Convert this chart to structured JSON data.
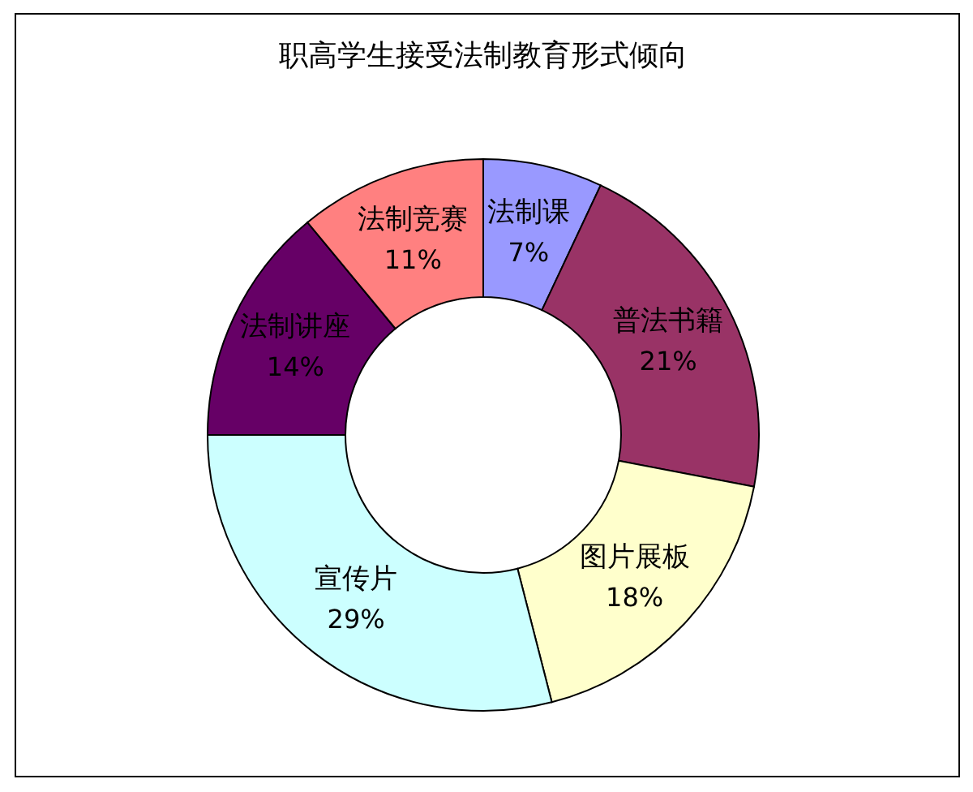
{
  "chart_data": {
    "type": "donut",
    "title": "职高学生接受法制教育形式倾向",
    "categories": [
      "法制课",
      "普法书籍",
      "图片展板",
      "宣传片",
      "法制讲座",
      "法制竞赛"
    ],
    "values": [
      7,
      21,
      18,
      29,
      14,
      11
    ],
    "colors": [
      "#9999ff",
      "#993366",
      "#ffffcc",
      "#ccffff",
      "#660066",
      "#ff8080"
    ],
    "value_labels": [
      "7%",
      "21%",
      "18%",
      "29%",
      "14%",
      "11%"
    ]
  }
}
